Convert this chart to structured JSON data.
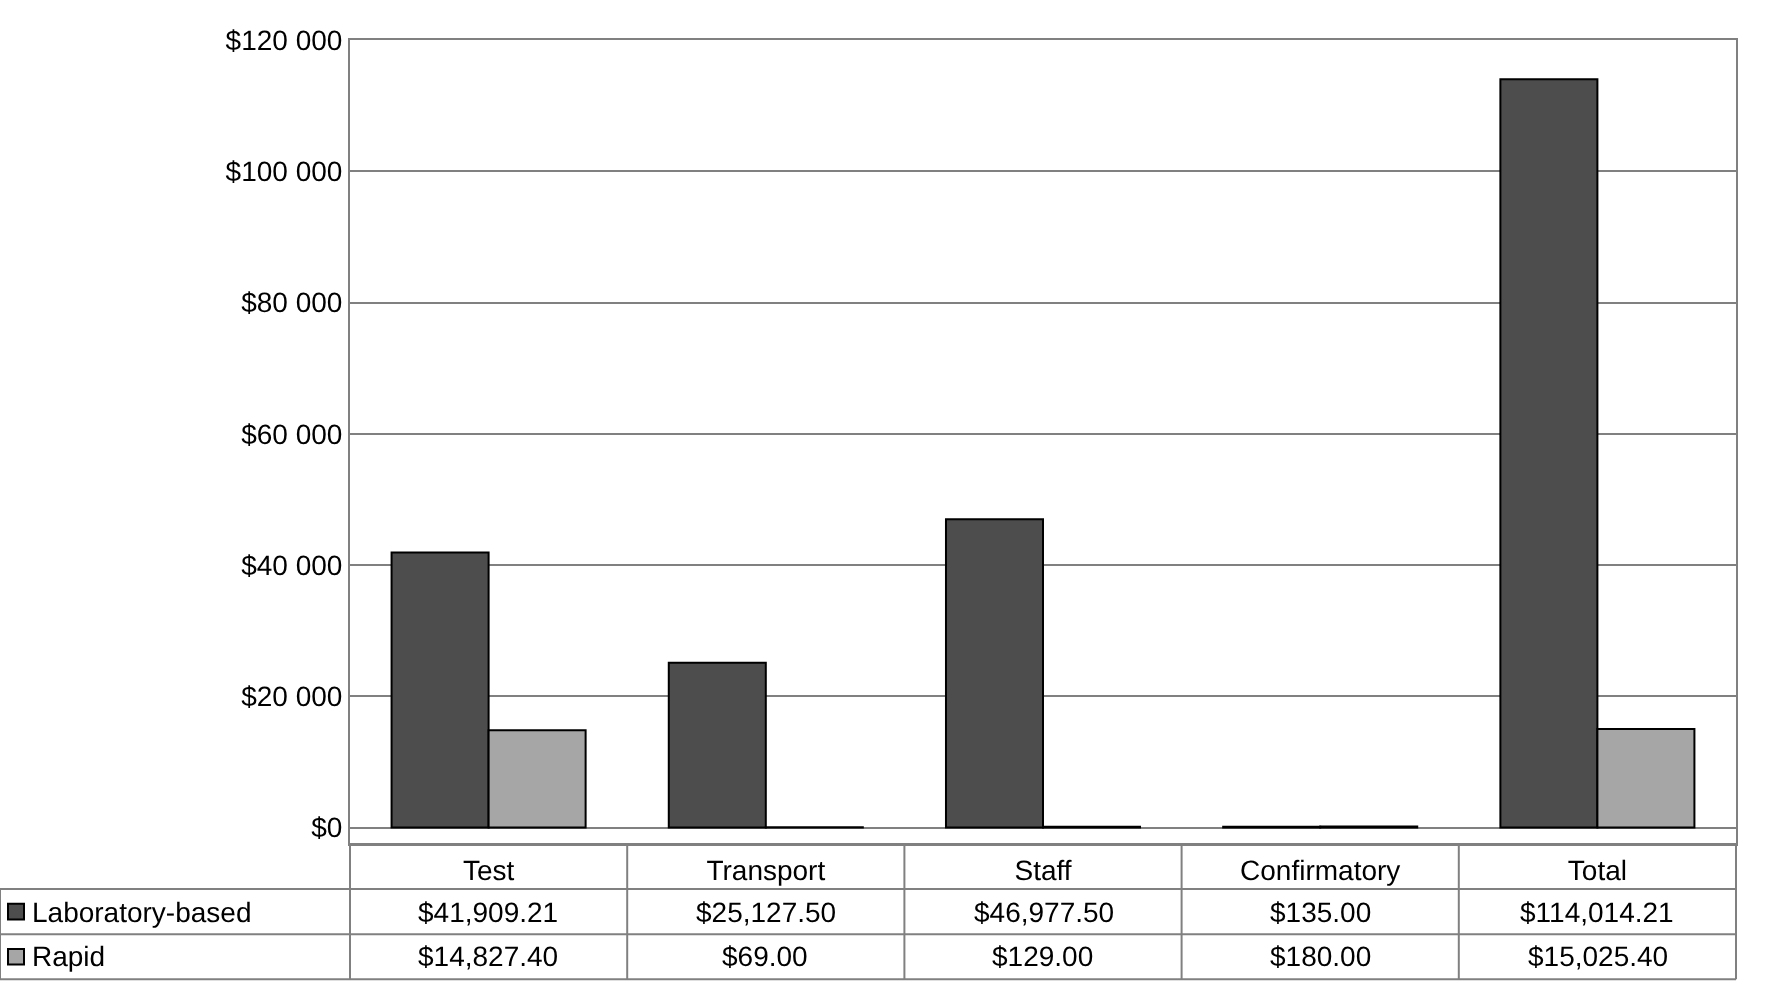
{
  "chart_data": {
    "type": "bar",
    "categories": [
      "Test",
      "Transport",
      "Staff",
      "Confirmatory",
      "Total"
    ],
    "series": [
      {
        "name": "Laboratory-based",
        "color": "#4d4d4d",
        "values": [
          41909.21,
          25127.5,
          46977.5,
          135.0,
          114014.21
        ],
        "value_labels": [
          "$41,909.21",
          "$25,127.50",
          "$46,977.50",
          "$135.00",
          "$114,014.21"
        ]
      },
      {
        "name": "Rapid",
        "color": "#a6a6a6",
        "values": [
          14827.4,
          69.0,
          129.0,
          180.0,
          15025.4
        ],
        "value_labels": [
          "$14,827.40",
          "$69.00",
          "$129.00",
          "$180.00",
          "$15,025.40"
        ]
      }
    ],
    "ylim": [
      -2500,
      120000
    ],
    "yticks": [
      {
        "value": 0,
        "label": "$0"
      },
      {
        "value": 20000,
        "label": "$20 000"
      },
      {
        "value": 40000,
        "label": "$40 000"
      },
      {
        "value": 60000,
        "label": "$60 000"
      },
      {
        "value": 80000,
        "label": "$80 000"
      },
      {
        "value": 100000,
        "label": "$100 000"
      },
      {
        "value": 120000,
        "label": "$120 000"
      }
    ],
    "grid": "y",
    "legend": "bottom left"
  }
}
